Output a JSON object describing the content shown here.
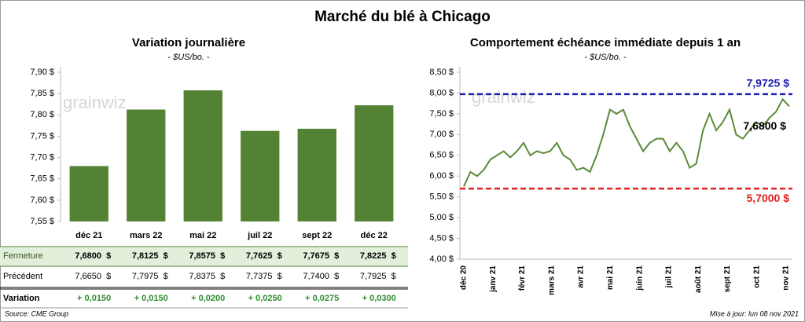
{
  "title": "Marché du blé à Chicago",
  "watermark": "grainwiz",
  "source": "Source: CME Group",
  "updated": "Mise à jour: lun 08 nov 2021",
  "chart_data": [
    {
      "type": "bar",
      "title": "Variation journalière",
      "subtitle": "- $US/bo. -",
      "categories": [
        "déc 21",
        "mars 22",
        "mai 22",
        "juil 22",
        "sept 22",
        "déc 22"
      ],
      "values": [
        7.68,
        7.8125,
        7.8575,
        7.7625,
        7.7675,
        7.8225
      ],
      "value_labels": [
        "7,6800  $",
        "7,8125  $",
        "7,8575  $",
        "7,7625  $",
        "7,7675  $",
        "7,8225  $"
      ],
      "color": "#548235",
      "ylim": [
        7.55,
        7.9
      ],
      "yticks": [
        {
          "value": 7.55,
          "label": "7,55 $"
        },
        {
          "value": 7.6,
          "label": "7,60 $"
        },
        {
          "value": 7.65,
          "label": "7,65 $"
        },
        {
          "value": 7.7,
          "label": "7,70 $"
        },
        {
          "value": 7.75,
          "label": "7,75 $"
        },
        {
          "value": 7.8,
          "label": "7,80 $"
        },
        {
          "value": 7.85,
          "label": "7,85 $"
        },
        {
          "value": 7.9,
          "label": "7,90 $"
        }
      ],
      "grid": false
    },
    {
      "type": "line",
      "title": "Comportement échéance immédiate depuis 1 an",
      "subtitle": "- $US/bo. -",
      "xticks": [
        "déc 20",
        "janv 21",
        "févr 21",
        "mars 21",
        "avr 21",
        "mai 21",
        "juin 21",
        "juil 21",
        "août 21",
        "sept 21",
        "oct 21",
        "nov 21"
      ],
      "values": [
        5.75,
        6.1,
        6.0,
        6.15,
        6.4,
        6.5,
        6.6,
        6.45,
        6.6,
        6.8,
        6.5,
        6.6,
        6.55,
        6.6,
        6.8,
        6.5,
        6.4,
        6.15,
        6.2,
        6.1,
        6.5,
        7.0,
        7.6,
        7.5,
        7.6,
        7.2,
        6.9,
        6.6,
        6.8,
        6.9,
        6.9,
        6.6,
        6.8,
        6.6,
        6.2,
        6.3,
        7.1,
        7.5,
        7.1,
        7.3,
        7.6,
        7.0,
        6.9,
        7.1,
        7.3,
        7.2,
        7.4,
        7.55,
        7.85,
        7.68
      ],
      "color": "#5b8b3a",
      "end_label": "7,6800 $",
      "reference_lines": [
        {
          "value": 7.9725,
          "label": "7,9725 $",
          "color": "#1c1cb0"
        },
        {
          "value": 5.7,
          "label": "5,7000 $",
          "color": "#e02020"
        }
      ],
      "ylim": [
        4.0,
        8.5
      ],
      "yticks": [
        {
          "value": 4.0,
          "label": "4,00 $"
        },
        {
          "value": 4.5,
          "label": "4,50 $"
        },
        {
          "value": 5.0,
          "label": "5,00 $"
        },
        {
          "value": 5.5,
          "label": "5,50 $"
        },
        {
          "value": 6.0,
          "label": "6,00 $"
        },
        {
          "value": 6.5,
          "label": "6,50 $"
        },
        {
          "value": 7.0,
          "label": "7,00 $"
        },
        {
          "value": 7.5,
          "label": "7,50 $"
        },
        {
          "value": 8.0,
          "label": "8,00 $"
        },
        {
          "value": 8.5,
          "label": "8,50 $"
        }
      ],
      "grid": false
    }
  ],
  "table": {
    "rows": [
      {
        "label": "Fermeture"
      },
      {
        "label": "Précédent",
        "cells": [
          "7,6650  $",
          "7,7975  $",
          "7,8375  $",
          "7,7375  $",
          "7,7400  $",
          "7,7925  $"
        ]
      },
      {
        "label": "Variation",
        "cells": [
          "+ 0,0150",
          "+ 0,0150",
          "+ 0,0200",
          "+ 0,0250",
          "+ 0,0275",
          "+ 0,0300"
        ]
      }
    ]
  }
}
